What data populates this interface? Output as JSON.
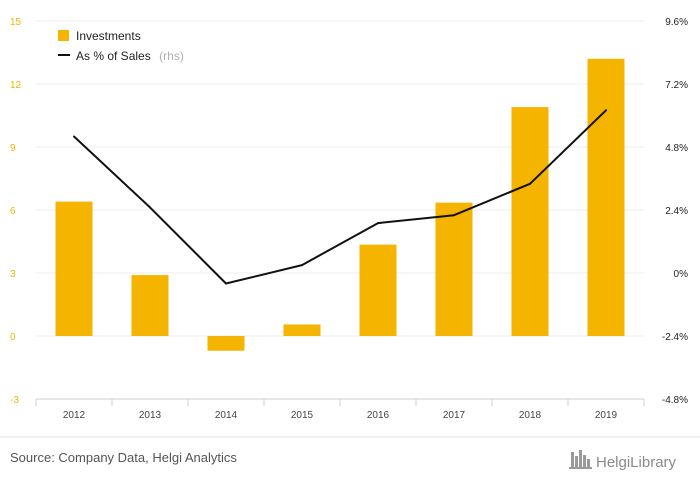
{
  "chart_data": {
    "type": "bar",
    "categories": [
      "2012",
      "2013",
      "2014",
      "2015",
      "2016",
      "2017",
      "2018",
      "2019"
    ],
    "series": [
      {
        "name": "Investments",
        "type": "bar",
        "axis": "left",
        "color": "#f5b400",
        "values": [
          6.4,
          2.9,
          -0.7,
          0.55,
          4.35,
          6.35,
          10.9,
          13.2
        ]
      },
      {
        "name": "As % of Sales",
        "type": "line",
        "axis": "right",
        "color": "#111111",
        "values": [
          5.2,
          2.5,
          -0.4,
          0.3,
          1.9,
          2.2,
          3.4,
          6.2
        ]
      }
    ],
    "legend": {
      "position": "top-left",
      "items": [
        {
          "label": "Investments",
          "note": ""
        },
        {
          "label": "As % of Sales",
          "note": "(rhs)"
        }
      ]
    },
    "ylim_left": [
      -3,
      15
    ],
    "yticks_left": [
      "-3",
      "0",
      "3",
      "6",
      "9",
      "12",
      "15"
    ],
    "ylim_right": [
      -4.8,
      9.6
    ],
    "yticks_right": [
      "-4.8%",
      "-2.4%",
      "0%",
      "2.4%",
      "4.8%",
      "7.2%",
      "9.6%"
    ],
    "grid": true
  },
  "footer": {
    "source": "Source: Company Data, Helgi Analytics",
    "logo": "HelgiLibrary"
  }
}
